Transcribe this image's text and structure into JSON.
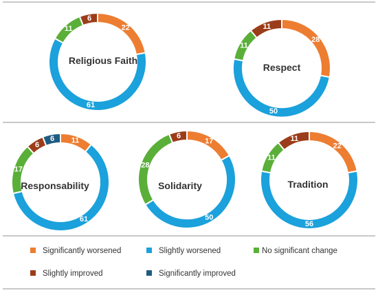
{
  "colors": {
    "Significantly worsened": "#ed7d31",
    "Slightly worsened": "#1ba1db",
    "No significant change": "#5aaf38",
    "Slightly improved": "#9b3d1a",
    "Significantly improved": "#1f5c80"
  },
  "legend": {
    "items": [
      "Significantly worsened",
      "Slightly worsened",
      "No significant change",
      "Slightly improved",
      "Significantly improved"
    ]
  },
  "chart_data": [
    {
      "type": "pie",
      "title": "Religious Faith",
      "slices": [
        {
          "category": "Significantly worsened",
          "value": 22
        },
        {
          "category": "Slightly worsened",
          "value": 61
        },
        {
          "category": "No significant change",
          "value": 11
        },
        {
          "category": "Slightly improved",
          "value": 6
        }
      ]
    },
    {
      "type": "pie",
      "title": "Respect",
      "slices": [
        {
          "category": "Significantly worsened",
          "value": 28
        },
        {
          "category": "Slightly worsened",
          "value": 50
        },
        {
          "category": "No significant change",
          "value": 11
        },
        {
          "category": "Slightly improved",
          "value": 11
        }
      ]
    },
    {
      "type": "pie",
      "title": "Responsability",
      "slices": [
        {
          "category": "Significantly worsened",
          "value": 11
        },
        {
          "category": "Slightly worsened",
          "value": 61
        },
        {
          "category": "No significant change",
          "value": 17
        },
        {
          "category": "Slightly improved",
          "value": 6
        },
        {
          "category": "Significantly improved",
          "value": 6
        }
      ]
    },
    {
      "type": "pie",
      "title": "Solidarity",
      "slices": [
        {
          "category": "Significantly worsened",
          "value": 17
        },
        {
          "category": "Slightly worsened",
          "value": 50
        },
        {
          "category": "No significant change",
          "value": 28
        },
        {
          "category": "Slightly improved",
          "value": 6
        }
      ]
    },
    {
      "type": "pie",
      "title": "Tradition",
      "slices": [
        {
          "category": "Significantly worsened",
          "value": 22
        },
        {
          "category": "Slightly worsened",
          "value": 56
        },
        {
          "category": "No significant change",
          "value": 11
        },
        {
          "category": "Slightly improved",
          "value": 11
        }
      ]
    }
  ]
}
